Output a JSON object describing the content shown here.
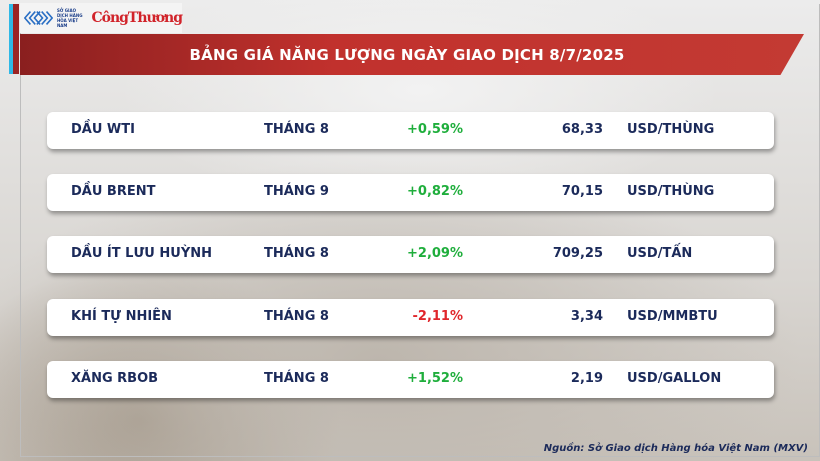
{
  "logo": {
    "mxv_text": "SỞ GIAO DỊCH HÀNG HÓA VIỆT NAM",
    "brand": "CôngThương"
  },
  "title": "BẢNG GIÁ NĂNG LƯỢNG NGÀY GIAO DỊCH 8/7/2025",
  "rows": [
    {
      "name": "DẦU WTI",
      "month": "THÁNG 8",
      "change": "+0,59%",
      "price": "68,33",
      "unit": "USD/THÙNG",
      "dir": "up"
    },
    {
      "name": "DẦU BRENT",
      "month": "THÁNG 9",
      "change": "+0,82%",
      "price": "70,15",
      "unit": "USD/THÙNG",
      "dir": "up"
    },
    {
      "name": "DẦU ÍT LƯU HUỲNH",
      "month": "THÁNG 8",
      "change": "+2,09%",
      "price": "709,25",
      "unit": "USD/TẤN",
      "dir": "up"
    },
    {
      "name": "KHÍ TỰ NHIÊN",
      "month": "THÁNG 8",
      "change": "-2,11%",
      "price": "3,34",
      "unit": "USD/MMBTU",
      "dir": "down"
    },
    {
      "name": "XĂNG RBOB",
      "month": "THÁNG 8",
      "change": "+1,52%",
      "price": "2,19",
      "unit": "USD/GALLON",
      "dir": "up"
    }
  ],
  "source": "Nguồn: Sở Giao dịch Hàng hóa Việt Nam (MXV)",
  "colors": {
    "up": "#1fae3c",
    "down": "#e0262b",
    "banner": "#c1312d",
    "text": "#1b2a5a"
  }
}
